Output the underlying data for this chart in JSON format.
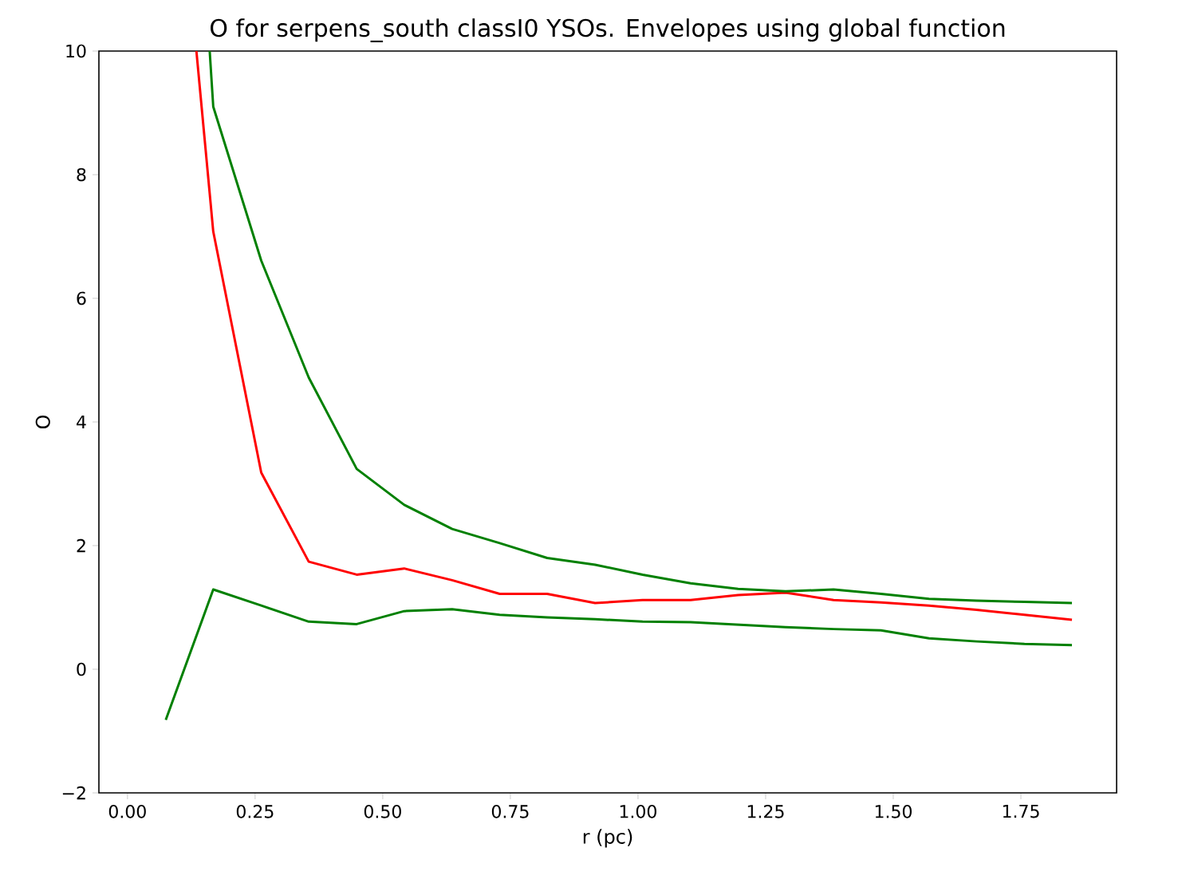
{
  "chart_data": {
    "type": "line",
    "title": "O for serpens_south classI0 YSOs. Envelopes using global function",
    "xlabel": "r (pc)",
    "ylabel": "O",
    "xlim": [
      -0.056,
      1.9375
    ],
    "ylim": [
      -2,
      10
    ],
    "xticks": [
      {
        "value": 0,
        "label": "0.00"
      },
      {
        "value": 0.25,
        "label": "0.25"
      },
      {
        "value": 0.5,
        "label": "0.50"
      },
      {
        "value": 0.75,
        "label": "0.75"
      },
      {
        "value": 1,
        "label": "1.00"
      },
      {
        "value": 1.25,
        "label": "1.25"
      },
      {
        "value": 1.5,
        "label": "1.50"
      },
      {
        "value": 1.75,
        "label": "1.75"
      }
    ],
    "yticks": [
      {
        "value": -2,
        "label": "−2"
      },
      0,
      2,
      4,
      6,
      8,
      10
    ],
    "series": [
      {
        "color": "#ff0000",
        "x": [
          0.135,
          0.168,
          0.262,
          0.355,
          0.449,
          0.542,
          0.636,
          0.729,
          0.822,
          0.916,
          1.009,
          1.103,
          1.196,
          1.289,
          1.383,
          1.476,
          1.57,
          1.663,
          1.757,
          1.85
        ],
        "values": [
          10,
          7.08,
          3.18,
          1.74,
          1.53,
          1.63,
          1.44,
          1.22,
          1.22,
          1.07,
          1.12,
          1.12,
          1.2,
          1.24,
          1.12,
          1.08,
          1.03,
          0.96,
          0.88,
          0.8
        ]
      },
      {
        "color": "#008000",
        "x": [
          0.161,
          0.168,
          0.262,
          0.355,
          0.449,
          0.542,
          0.636,
          0.729,
          0.822,
          0.916,
          1.009,
          1.103,
          1.196,
          1.289,
          1.383,
          1.476,
          1.57,
          1.663,
          1.757,
          1.85
        ],
        "values": [
          10,
          9.1,
          6.61,
          4.72,
          3.24,
          2.66,
          2.27,
          2.04,
          1.8,
          1.69,
          1.53,
          1.39,
          1.3,
          1.26,
          1.29,
          1.22,
          1.14,
          1.11,
          1.09,
          1.07
        ]
      },
      {
        "color": "#008000",
        "x": [
          0.075,
          0.168,
          0.262,
          0.355,
          0.449,
          0.542,
          0.636,
          0.729,
          0.822,
          0.916,
          1.009,
          1.103,
          1.196,
          1.289,
          1.383,
          1.476,
          1.57,
          1.663,
          1.757,
          1.85
        ],
        "values": [
          -0.82,
          1.29,
          1.03,
          0.77,
          0.73,
          0.94,
          0.97,
          0.88,
          0.84,
          0.81,
          0.77,
          0.76,
          0.72,
          0.68,
          0.65,
          0.63,
          0.5,
          0.45,
          0.41,
          0.39
        ]
      }
    ]
  }
}
